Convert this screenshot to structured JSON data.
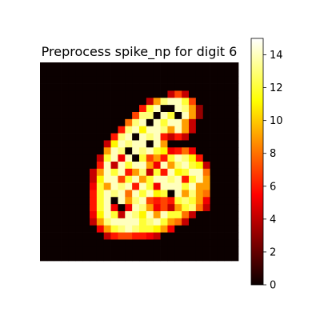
{
  "chart_data": {
    "type": "heatmap",
    "title": "Preprocess spike_np for digit 6",
    "xlabel": "",
    "ylabel": "",
    "colormap": "hot",
    "grid": false,
    "axes_visible": false,
    "colorbar": {
      "position": "right",
      "vmin": 0,
      "vmax": 15,
      "ticks": [
        0,
        2,
        4,
        6,
        8,
        10,
        12,
        14
      ],
      "tick_labels": [
        "0",
        "2",
        "4",
        "6",
        "8",
        "10",
        "12",
        "14"
      ]
    },
    "rows": 28,
    "cols": 28,
    "values": [
      [
        0,
        0,
        0,
        0,
        0,
        0,
        0,
        0,
        0,
        0,
        0,
        0,
        0,
        0,
        0,
        0,
        0,
        0,
        0,
        0,
        0,
        0,
        0,
        0,
        0,
        0,
        0,
        0
      ],
      [
        0,
        0,
        0,
        0,
        0,
        0,
        0,
        0,
        0,
        0,
        0,
        0,
        0,
        0,
        0,
        0,
        0,
        0,
        0,
        0,
        0,
        0,
        0,
        0,
        0,
        0,
        0,
        0
      ],
      [
        0,
        0,
        0,
        0,
        0,
        0,
        0,
        0,
        0,
        0,
        0,
        0,
        0,
        0,
        0,
        0,
        0,
        0,
        0,
        0,
        0,
        0,
        0,
        0,
        0,
        0,
        0,
        0
      ],
      [
        0,
        0,
        0,
        0,
        0,
        0,
        0,
        0,
        0,
        0,
        0,
        0,
        0,
        0,
        0,
        0,
        0,
        0,
        0,
        0,
        0,
        0,
        0,
        0,
        0,
        0,
        0,
        0
      ],
      [
        0,
        0,
        0,
        0,
        0,
        0,
        0,
        0,
        0,
        0,
        0,
        0,
        0,
        0,
        0,
        0,
        0,
        0,
        4,
        7,
        4,
        0,
        0,
        0,
        0,
        0,
        0,
        0
      ],
      [
        0,
        0,
        0,
        0,
        0,
        0,
        0,
        0,
        0,
        0,
        0,
        0,
        0,
        0,
        0,
        4,
        9,
        13,
        14,
        14,
        12,
        7,
        0,
        0,
        0,
        0,
        0,
        0
      ],
      [
        0,
        0,
        0,
        0,
        0,
        0,
        0,
        0,
        0,
        0,
        0,
        0,
        0,
        0,
        6,
        12,
        14,
        0,
        0,
        14,
        13,
        9,
        3,
        0,
        0,
        0,
        0,
        0
      ],
      [
        0,
        0,
        0,
        0,
        0,
        0,
        0,
        0,
        0,
        0,
        0,
        0,
        0,
        7,
        13,
        13,
        0,
        14,
        12,
        0,
        14,
        9,
        3,
        0,
        0,
        0,
        0,
        0
      ],
      [
        0,
        0,
        0,
        0,
        0,
        0,
        0,
        0,
        0,
        0,
        0,
        0,
        8,
        13,
        14,
        0,
        14,
        12,
        14,
        14,
        9,
        4,
        0,
        0,
        0,
        0,
        0,
        0
      ],
      [
        0,
        0,
        0,
        0,
        0,
        0,
        0,
        0,
        0,
        0,
        0,
        6,
        13,
        14,
        11,
        14,
        14,
        13,
        9,
        14,
        9,
        4,
        0,
        0,
        0,
        0,
        0,
        0
      ],
      [
        0,
        0,
        0,
        0,
        0,
        0,
        0,
        0,
        0,
        0,
        6,
        13,
        14,
        0,
        14,
        13,
        14,
        6,
        4,
        6,
        4,
        0,
        0,
        0,
        0,
        0,
        0,
        0
      ],
      [
        0,
        0,
        0,
        0,
        0,
        0,
        0,
        0,
        0,
        4,
        11,
        14,
        13,
        14,
        14,
        0,
        14,
        9,
        0,
        0,
        0,
        0,
        0,
        0,
        0,
        0,
        0,
        0
      ],
      [
        0,
        0,
        0,
        0,
        0,
        0,
        0,
        0,
        0,
        9,
        14,
        13,
        0,
        14,
        13,
        14,
        12,
        11,
        5,
        6,
        8,
        5,
        0,
        0,
        0,
        0,
        0,
        0
      ],
      [
        0,
        0,
        0,
        0,
        0,
        0,
        0,
        0,
        4,
        12,
        14,
        5,
        14,
        0,
        12,
        7,
        9,
        6,
        12,
        14,
        13,
        11,
        6,
        0,
        0,
        0,
        0,
        0
      ],
      [
        0,
        0,
        0,
        0,
        0,
        0,
        0,
        0,
        6,
        14,
        4,
        14,
        12,
        14,
        14,
        9,
        5,
        14,
        9,
        13,
        14,
        12,
        11,
        4,
        0,
        0,
        0,
        0
      ],
      [
        0,
        0,
        0,
        0,
        0,
        0,
        0,
        4,
        9,
        14,
        12,
        14,
        6,
        9,
        13,
        4,
        12,
        6,
        14,
        11,
        12,
        14,
        14,
        8,
        0,
        0,
        0,
        0
      ],
      [
        0,
        0,
        0,
        0,
        0,
        0,
        0,
        4,
        11,
        14,
        14,
        7,
        12,
        14,
        9,
        12,
        14,
        14,
        13,
        14,
        6,
        12,
        14,
        9,
        0,
        0,
        0,
        0
      ],
      [
        0,
        0,
        0,
        0,
        0,
        0,
        0,
        5,
        12,
        9,
        14,
        13,
        14,
        6,
        14,
        12,
        5,
        14,
        14,
        14,
        12,
        14,
        9,
        9,
        0,
        0,
        0,
        0
      ],
      [
        0,
        0,
        0,
        0,
        0,
        0,
        0,
        6,
        12,
        14,
        13,
        14,
        8,
        14,
        12,
        14,
        11,
        12,
        0,
        14,
        9,
        13,
        9,
        8,
        0,
        0,
        0,
        0
      ],
      [
        0,
        0,
        0,
        0,
        0,
        0,
        0,
        6,
        12,
        14,
        0,
        14,
        9,
        13,
        14,
        7,
        6,
        7,
        6,
        12,
        13,
        12,
        9,
        5,
        0,
        0,
        0,
        0
      ],
      [
        0,
        0,
        0,
        0,
        0,
        0,
        0,
        6,
        12,
        14,
        5,
        0,
        5,
        14,
        13,
        9,
        5,
        7,
        4,
        9,
        12,
        13,
        8,
        4,
        0,
        0,
        0,
        0
      ],
      [
        0,
        0,
        0,
        0,
        0,
        0,
        0,
        5,
        11,
        14,
        12,
        4,
        14,
        13,
        11,
        14,
        9,
        14,
        12,
        12,
        8,
        4,
        0,
        0,
        0,
        0,
        0,
        0
      ],
      [
        0,
        0,
        0,
        0,
        0,
        0,
        0,
        4,
        9,
        13,
        14,
        14,
        14,
        14,
        12,
        13,
        14,
        12,
        9,
        8,
        4,
        0,
        0,
        0,
        0,
        0,
        0,
        0
      ],
      [
        0,
        0,
        0,
        0,
        0,
        0,
        0,
        0,
        5,
        9,
        12,
        13,
        14,
        13,
        12,
        12,
        11,
        9,
        5,
        0,
        0,
        0,
        0,
        0,
        0,
        0,
        0,
        0
      ],
      [
        0,
        0,
        0,
        0,
        0,
        0,
        0,
        0,
        0,
        4,
        6,
        7,
        7,
        6,
        6,
        5,
        4,
        0,
        0,
        0,
        0,
        0,
        0,
        0,
        0,
        0,
        0,
        0
      ],
      [
        0,
        0,
        0,
        0,
        0,
        0,
        0,
        0,
        0,
        0,
        0,
        0,
        0,
        0,
        0,
        0,
        0,
        0,
        0,
        0,
        0,
        0,
        0,
        0,
        0,
        0,
        0,
        0
      ],
      [
        0,
        0,
        0,
        0,
        0,
        0,
        0,
        0,
        0,
        0,
        0,
        0,
        0,
        0,
        0,
        0,
        0,
        0,
        0,
        0,
        0,
        0,
        0,
        0,
        0,
        0,
        0,
        0
      ],
      [
        0,
        0,
        0,
        0,
        0,
        0,
        0,
        0,
        0,
        0,
        0,
        0,
        0,
        0,
        0,
        0,
        0,
        0,
        0,
        0,
        0,
        0,
        0,
        0,
        0,
        0,
        0,
        0
      ]
    ]
  }
}
